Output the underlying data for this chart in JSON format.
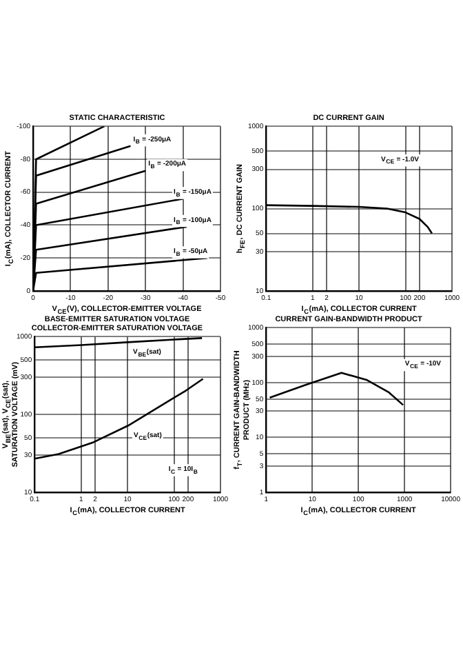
{
  "chart_data": [
    {
      "type": "line",
      "title": "STATIC CHARACTERISTIC",
      "xlabel": "V$_{CE}$(V), COLLECTOR-EMITTER VOLTAGE",
      "ylabel": "I$_{C}$(mA), COLLECTOR CURRENT",
      "xlim": [
        0,
        -50
      ],
      "xticks": [
        0,
        -10,
        -20,
        -30,
        -40,
        -50
      ],
      "ylim": [
        0,
        -100
      ],
      "yticks": [
        0,
        -20,
        -40,
        -60,
        -80,
        -100
      ],
      "grid": true,
      "legend": false,
      "series": [
        {
          "name": "I$_{B}$ = -50μA",
          "color": "#000000",
          "x": [
            0,
            -0.8,
            -46.5
          ],
          "values": [
            0,
            -11,
            -20
          ]
        },
        {
          "name": "I$_{B}$ = -100μA",
          "color": "#000000",
          "x": [
            0,
            -0.8,
            -41
          ],
          "values": [
            0,
            -25,
            -39
          ]
        },
        {
          "name": "I$_{B}$ = -150μA",
          "color": "#000000",
          "x": [
            0,
            -0.8,
            -40
          ],
          "values": [
            0,
            -40,
            -56
          ]
        },
        {
          "name": "I$_{B}$ = -200μA",
          "color": "#000000",
          "x": [
            0,
            -0.8,
            -30
          ],
          "values": [
            0,
            -53,
            -73
          ]
        },
        {
          "name": "I$_{B}$ = -250μA",
          "color": "#000000",
          "x": [
            0,
            -0.8,
            -26
          ],
          "values": [
            0,
            -70,
            -88
          ]
        },
        {
          "color": "#000000",
          "x": [
            0,
            -0.8,
            -19
          ],
          "values": [
            0,
            -80,
            -100
          ]
        }
      ]
    },
    {
      "type": "line",
      "title": "DC CURRENT GAIN",
      "xlabel": "I$_{C}$(mA), COLLECTOR CURRENT",
      "ylabel": "h$_{FE}$, DC CURRENT GAIN",
      "log": "xy",
      "xlim": [
        0.1,
        1000
      ],
      "xticks": [
        0.1,
        1,
        2,
        10,
        100,
        200,
        1000
      ],
      "ylim": [
        10,
        1000
      ],
      "yticks": [
        10,
        30,
        50,
        100,
        300,
        500,
        1000
      ],
      "grid": true,
      "legend": false,
      "annotations": [
        "V$_{CE}$ = -1.0V"
      ],
      "series": [
        {
          "color": "#000000",
          "x": [
            0.1,
            1,
            10,
            40,
            100,
            200,
            300,
            370
          ],
          "values": [
            110,
            108,
            105,
            100,
            90,
            75,
            60,
            50
          ]
        }
      ]
    },
    {
      "type": "line",
      "title": "BASE-EMITTER SATURATION VOLTAGE\nCOLLECTOR-EMITTER SATURATION VOLTAGE",
      "xlabel": "I$_{C}$(mA), COLLECTOR CURRENT",
      "ylabel": "V$_{BE}$(sat), V$_{CE}$(sat), SATURATION VOLTAGE (mV)",
      "log": "xy",
      "xlim": [
        0.1,
        1000
      ],
      "xticks": [
        0.1,
        1,
        2,
        10,
        100,
        200,
        1000
      ],
      "ylim": [
        10,
        1000
      ],
      "yticks": [
        10,
        30,
        50,
        100,
        300,
        500,
        1000
      ],
      "grid": true,
      "legend": false,
      "annotations": [
        "I$_{C}$ = 10I$_{B}$"
      ],
      "series": [
        {
          "name": "V$_{BE}$(sat)",
          "color": "#000000",
          "x": [
            0.1,
            1,
            10,
            100,
            400
          ],
          "values": [
            730,
            780,
            850,
            920,
            960
          ]
        },
        {
          "name": "V$_{CE}$(sat)",
          "color": "#000000",
          "x": [
            0.1,
            0.33,
            1.85,
            10.3,
            57,
            180,
            420
          ],
          "values": [
            27,
            31,
            44,
            72,
            134,
            203,
            287
          ]
        }
      ]
    },
    {
      "type": "line",
      "title": "CURRENT GAIN-BANDWIDTH PRODUCT",
      "xlabel": "I$_{C}$(mA), COLLECTOR CURRENT",
      "ylabel": "f$_{T}$, CURRENT GAIN-BANDWIDTH PRODUCT (MHz)",
      "log": "xy",
      "xlim": [
        1,
        10000
      ],
      "xticks": [
        1,
        10,
        100,
        1000,
        10000
      ],
      "ylim": [
        1,
        1000
      ],
      "yticks": [
        1,
        3,
        5,
        10,
        30,
        50,
        100,
        300,
        500,
        1000
      ],
      "grid": true,
      "legend": false,
      "annotations": [
        "V$_{CE}$ = -10V"
      ],
      "series": [
        {
          "color": "#000000",
          "x": [
            1.2,
            7,
            43,
            150,
            460,
            930
          ],
          "values": [
            53,
            90,
            150,
            112,
            66,
            39
          ]
        }
      ]
    }
  ]
}
